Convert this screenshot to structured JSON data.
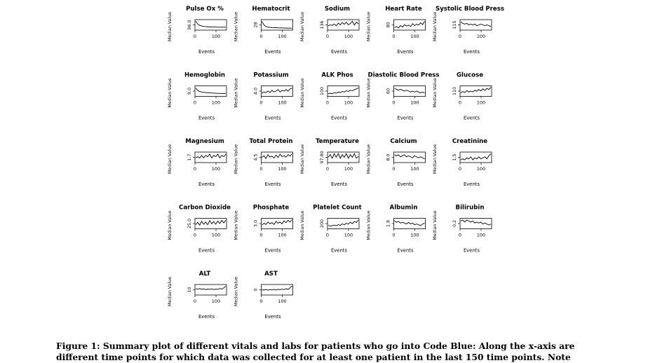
{
  "chart_data": [
    {
      "type": "line",
      "title": "Pulse Ox %",
      "xlabel": "Events",
      "ylabel": "Median Value",
      "ytick": "96.0",
      "xticks": [
        "0",
        "100"
      ],
      "xlim": [
        0,
        150
      ],
      "series": [
        {
          "values": [
            99.6,
            98.2,
            97.5,
            97.2,
            97.0,
            96.9,
            96.8,
            96.8,
            96.7,
            96.7,
            96.7,
            96.6,
            96.6,
            96.6,
            96.6,
            96.6
          ]
        }
      ],
      "ylim": [
        95.5,
        100
      ]
    },
    {
      "type": "line",
      "title": "Hematocrit",
      "xlabel": "Events",
      "ylabel": "Median Value",
      "ytick": "28",
      "xticks": [
        "0",
        "100"
      ],
      "xlim": [
        0,
        150
      ],
      "series": [
        {
          "values": [
            34,
            31,
            29.5,
            29,
            28.8,
            28.6,
            28.5,
            28.6,
            28.4,
            28.3,
            28.4,
            28.2,
            28.3,
            28.1,
            28.2,
            28.1
          ]
        }
      ],
      "ylim": [
        27,
        35
      ]
    },
    {
      "type": "line",
      "title": "Sodium",
      "xlabel": "Events",
      "ylabel": "Median Value",
      "ytick": "136",
      "xticks": [
        "0",
        "100"
      ],
      "xlim": [
        0,
        150
      ],
      "series": [
        {
          "values": [
            137,
            137.5,
            137.2,
            138,
            137,
            138.5,
            137.5,
            138.8,
            137.8,
            139,
            137.6,
            138.2,
            139.5,
            137.4,
            139,
            138
          ]
        }
      ],
      "ylim": [
        135,
        140
      ]
    },
    {
      "type": "line",
      "title": "Heart Rate",
      "xlabel": "Events",
      "ylabel": "Median Value",
      "ytick": "80",
      "xticks": [
        "0",
        "100"
      ],
      "xlim": [
        0,
        150
      ],
      "series": [
        {
          "values": [
            82,
            84,
            81,
            86,
            83,
            88,
            85,
            87,
            84,
            90,
            86,
            89,
            87,
            92,
            88,
            95
          ]
        }
      ],
      "ylim": [
        78,
        97
      ]
    },
    {
      "type": "line",
      "title": "Systolic Blood Press",
      "xlabel": "Events",
      "ylabel": "Median Value",
      "ytick": "115",
      "xticks": [
        "0",
        "100"
      ],
      "xlim": [
        0,
        150
      ],
      "series": [
        {
          "values": [
            124,
            122,
            121,
            122,
            120,
            121,
            120,
            121,
            119,
            120,
            121,
            120,
            119,
            120,
            119,
            118
          ]
        }
      ],
      "ylim": [
        114,
        126
      ]
    },
    {
      "type": "line",
      "title": "Hemoglobin",
      "xlabel": "Events",
      "ylabel": "Median Value",
      "ytick": "9.0",
      "xticks": [
        "0",
        "100"
      ],
      "xlim": [
        0,
        150
      ],
      "series": [
        {
          "values": [
            11.5,
            10.5,
            10.1,
            9.9,
            9.8,
            9.7,
            9.6,
            9.6,
            9.5,
            9.5,
            9.4,
            9.4,
            9.4,
            9.3,
            9.3,
            9.3
          ]
        }
      ],
      "ylim": [
        8.5,
        12
      ]
    },
    {
      "type": "line",
      "title": "Potassium",
      "xlabel": "Events",
      "ylabel": "Median Value",
      "ytick": "4.0",
      "xticks": [
        "0",
        "100"
      ],
      "xlim": [
        0,
        150
      ],
      "series": [
        {
          "values": [
            4.1,
            4.3,
            4.2,
            4.4,
            4.2,
            4.5,
            4.3,
            4.4,
            4.6,
            4.3,
            4.5,
            4.4,
            4.6,
            4.4,
            4.7,
            4.8
          ]
        }
      ],
      "ylim": [
        3.8,
        5.0
      ]
    },
    {
      "type": "line",
      "title": "ALK Phos",
      "xlabel": "Events",
      "ylabel": "Median Value",
      "ytick": "100",
      "xticks": [
        "0",
        "100"
      ],
      "xlim": [
        0,
        150
      ],
      "series": [
        {
          "values": [
            98,
            99,
            98,
            100,
            99,
            101,
            100,
            102,
            101,
            103,
            102,
            104,
            103,
            105,
            106,
            108
          ]
        }
      ],
      "ylim": [
        95,
        110
      ]
    },
    {
      "type": "line",
      "title": "Diastolic Blood Press",
      "xlabel": "Events",
      "ylabel": "Median Value",
      "ytick": "60",
      "xticks": [
        "0",
        "100"
      ],
      "xlim": [
        0,
        150
      ],
      "series": [
        {
          "values": [
            66,
            65,
            64,
            65,
            64,
            63,
            64,
            63,
            62,
            63,
            62,
            63,
            62,
            61,
            62,
            61
          ]
        }
      ],
      "ylim": [
        58,
        68
      ]
    },
    {
      "type": "line",
      "title": "Glucose",
      "xlabel": "Events",
      "ylabel": "Median Value",
      "ytick": "110",
      "xticks": [
        "0",
        "100"
      ],
      "xlim": [
        0,
        150
      ],
      "series": [
        {
          "values": [
            120,
            126,
            122,
            130,
            124,
            128,
            125,
            132,
            127,
            135,
            129,
            138,
            131,
            140,
            135,
            145
          ]
        }
      ],
      "ylim": [
        108,
        148
      ]
    },
    {
      "type": "line",
      "title": "Magnesium",
      "xlabel": "Events",
      "ylabel": "Median Value",
      "ytick": "1.7",
      "xticks": [
        "0",
        "100"
      ],
      "xlim": [
        0,
        150
      ],
      "series": [
        {
          "values": [
            1.9,
            2.0,
            1.9,
            2.1,
            1.9,
            2.1,
            2.0,
            2.2,
            1.9,
            2.1,
            2.0,
            2.2,
            1.9,
            2.1,
            2.0,
            2.2
          ]
        }
      ],
      "ylim": [
        1.6,
        2.3
      ]
    },
    {
      "type": "line",
      "title": "Total Protein",
      "xlabel": "Events",
      "ylabel": "Median Value",
      "ytick": "4.5",
      "xticks": [
        "0",
        "100"
      ],
      "xlim": [
        0,
        150
      ],
      "series": [
        {
          "values": [
            5.2,
            5.6,
            5.0,
            5.8,
            5.3,
            5.5,
            5.1,
            5.7,
            5.2,
            5.9,
            5.4,
            5.6,
            5.3,
            5.8,
            5.5,
            6.0
          ]
        }
      ],
      "ylim": [
        4.3,
        6.2
      ]
    },
    {
      "type": "line",
      "title": "Temperature",
      "xlabel": "Events",
      "ylabel": "Median Value",
      "ytick": "97.80",
      "xticks": [
        "0",
        "100"
      ],
      "xlim": [
        0,
        150
      ],
      "series": [
        {
          "values": [
            98.2,
            98.5,
            98.1,
            98.6,
            98.2,
            98.6,
            98.1,
            98.5,
            98.2,
            98.6,
            98.1,
            98.5,
            98.2,
            98.6,
            98.1,
            98.3
          ]
        }
      ],
      "ylim": [
        97.7,
        98.7
      ]
    },
    {
      "type": "line",
      "title": "Calcium",
      "xlabel": "Events",
      "ylabel": "Median Value",
      "ytick": "8.0",
      "xticks": [
        "0",
        "100"
      ],
      "xlim": [
        0,
        150
      ],
      "series": [
        {
          "values": [
            8.6,
            8.5,
            8.6,
            8.4,
            8.5,
            8.6,
            8.4,
            8.5,
            8.4,
            8.3,
            8.5,
            8.4,
            8.3,
            8.4,
            8.3,
            8.2
          ]
        }
      ],
      "ylim": [
        7.9,
        8.8
      ]
    },
    {
      "type": "line",
      "title": "Creatinine",
      "xlabel": "Events",
      "ylabel": "Median Value",
      "ytick": "1.5",
      "xticks": [
        "0",
        "100"
      ],
      "xlim": [
        0,
        150
      ],
      "series": [
        {
          "values": [
            1.6,
            1.7,
            1.6,
            1.8,
            1.7,
            1.9,
            1.6,
            1.8,
            1.7,
            1.9,
            1.7,
            1.8,
            1.9,
            1.7,
            2.0,
            2.2
          ]
        }
      ],
      "ylim": [
        1.4,
        2.3
      ]
    },
    {
      "type": "line",
      "title": "Carbon Dioxide",
      "xlabel": "Events",
      "ylabel": "Median Value",
      "ytick": "25.0",
      "xticks": [
        "0",
        "100"
      ],
      "xlim": [
        0,
        150
      ],
      "series": [
        {
          "values": [
            26,
            27,
            25.8,
            27.5,
            26.2,
            27.2,
            26,
            27.8,
            26.4,
            27.4,
            26.2,
            27.6,
            26.5,
            27.9,
            26.8,
            28
          ]
        }
      ],
      "ylim": [
        24.5,
        28.5
      ]
    },
    {
      "type": "line",
      "title": "Phosphate",
      "xlabel": "Events",
      "ylabel": "Median Value",
      "ytick": "3.0",
      "xticks": [
        "0",
        "100"
      ],
      "xlim": [
        0,
        150
      ],
      "series": [
        {
          "values": [
            3.4,
            3.7,
            3.5,
            3.9,
            3.6,
            3.8,
            3.5,
            4.0,
            3.7,
            3.9,
            3.6,
            4.1,
            3.8,
            4.2,
            3.9,
            4.3
          ]
        }
      ],
      "ylim": [
        2.9,
        4.4
      ]
    },
    {
      "type": "line",
      "title": "Platelet Count",
      "xlabel": "Events",
      "ylabel": "Median Value",
      "ytick": "200",
      "xticks": [
        "0",
        "100"
      ],
      "xlim": [
        0,
        150
      ],
      "series": [
        {
          "values": [
            210,
            205,
            208,
            212,
            206,
            215,
            210,
            220,
            214,
            225,
            218,
            232,
            222,
            238,
            230,
            248
          ]
        }
      ],
      "ylim": [
        190,
        255
      ]
    },
    {
      "type": "line",
      "title": "Albumin",
      "xlabel": "Events",
      "ylabel": "Median Value",
      "ytick": "1.8",
      "xticks": [
        "0",
        "100"
      ],
      "xlim": [
        0,
        150
      ],
      "series": [
        {
          "values": [
            2.6,
            2.4,
            2.5,
            2.3,
            2.4,
            2.3,
            2.2,
            2.4,
            2.2,
            2.3,
            2.1,
            2.2,
            2.1,
            2.0,
            2.2,
            2.3
          ]
        }
      ],
      "ylim": [
        1.7,
        2.8
      ]
    },
    {
      "type": "line",
      "title": "Bilirubin",
      "xlabel": "Events",
      "ylabel": "Median Value",
      "ytick": "0.2",
      "xticks": [
        "0",
        "100"
      ],
      "xlim": [
        0,
        150
      ],
      "series": [
        {
          "values": [
            0.8,
            0.9,
            0.7,
            0.9,
            0.8,
            0.7,
            0.8,
            0.6,
            0.7,
            0.6,
            0.7,
            0.5,
            0.6,
            0.5,
            0.4,
            0.5
          ]
        }
      ],
      "ylim": [
        0.1,
        1.0
      ]
    },
    {
      "type": "line",
      "title": "ALT",
      "xlabel": "Events",
      "ylabel": "Median Value",
      "ytick": "10",
      "xticks": [
        "0",
        "100"
      ],
      "xlim": [
        0,
        150
      ],
      "series": [
        {
          "values": [
            25,
            24,
            26,
            23,
            25,
            22,
            24,
            23,
            25,
            22,
            24,
            23,
            26,
            24,
            28,
            35
          ]
        }
      ],
      "ylim": [
        5,
        38
      ]
    },
    {
      "type": "line",
      "title": "AST",
      "xlabel": "Events",
      "ylabel": "Median Value",
      "ytick": "0",
      "xticks": [
        "0",
        "100"
      ],
      "xlim": [
        0,
        150
      ],
      "series": [
        {
          "values": [
            30,
            28,
            32,
            27,
            31,
            29,
            33,
            28,
            34,
            30,
            35,
            31,
            38,
            33,
            45,
            60
          ]
        }
      ],
      "ylim": [
        -5,
        65
      ]
    }
  ],
  "caption": {
    "line1": "Figure 1: Summary plot of different vitals and labs for patients who go into Code Blue: Along the x-axis are",
    "line2": "different time points for which data was collected for at least one patient in the last 150 time points. Note"
  }
}
